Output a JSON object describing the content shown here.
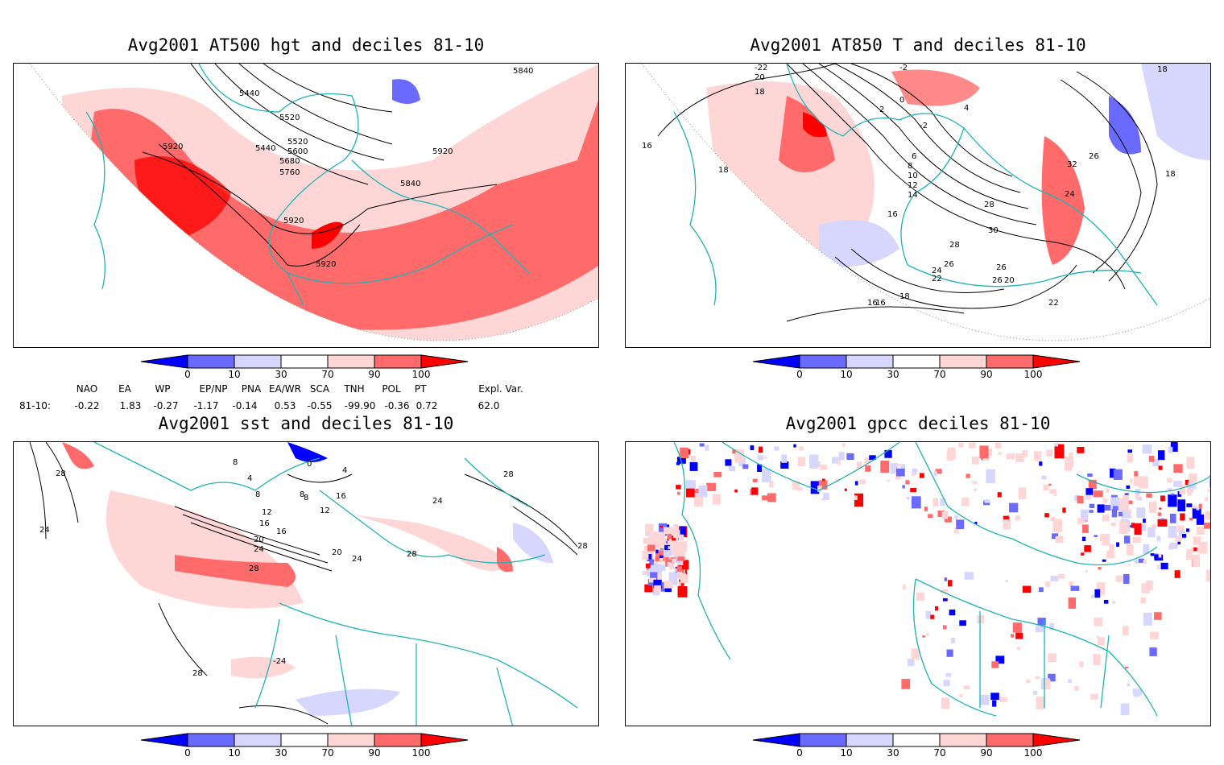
{
  "panels": [
    {
      "title": "Avg2001 AT500 hgt and deciles 81-10",
      "labels": [
        "5440",
        "5440",
        "5520",
        "5520",
        "5600",
        "5680",
        "5760",
        "5840",
        "5840",
        "5920",
        "5920",
        "5920",
        "5920"
      ]
    },
    {
      "title": "Avg2001 AT850 T and deciles 81-10",
      "labels": [
        "-22",
        "20",
        "18",
        "-2",
        "0",
        "2",
        "-2",
        "4",
        "6",
        "8",
        "10",
        "12",
        "14",
        "16",
        "16",
        "18",
        "18",
        "18",
        "22",
        "24",
        "26",
        "26",
        "28",
        "30",
        "32",
        "24",
        "26",
        "16",
        "18",
        "16",
        "20",
        "22",
        "24",
        "26",
        "28"
      ]
    },
    {
      "title": "Avg2001 sst and deciles 81-10",
      "labels": [
        "28",
        "24",
        "8",
        "4",
        "0",
        "4",
        "8",
        "8",
        "8",
        "12",
        "12",
        "16",
        "16",
        "16",
        "20",
        "20",
        "24",
        "24",
        "24",
        "28",
        "28",
        "28",
        "28",
        "28",
        "-24"
      ]
    },
    {
      "title": "Avg2001 gpcc deciles 81-10",
      "labels": []
    }
  ],
  "colorbar": {
    "ticks": [
      "0",
      "10",
      "30",
      "70",
      "90",
      "100"
    ],
    "colors": [
      "#0000ff",
      "#6a6aff",
      "#d6d6ff",
      "#ffffff",
      "#ffd6d6",
      "#ff6a6a",
      "#ff0000"
    ]
  },
  "indices": {
    "headers": [
      "NAO",
      "EA",
      "WP",
      "EP/NP",
      "PNA",
      "EA/WR",
      "SCA",
      "TNH",
      "POL",
      "PT",
      "Expl. Var."
    ],
    "row_label": "81-10:",
    "values": [
      "-0.22",
      "1.83",
      "-0.27",
      "-1.17",
      "-0.14",
      "0.53",
      "-0.55",
      "-99.90",
      "-0.36",
      "0.72",
      "62.0"
    ]
  },
  "colors": {
    "coast": "#1fb3b3",
    "contour": "#000000",
    "frame": "#000000"
  }
}
